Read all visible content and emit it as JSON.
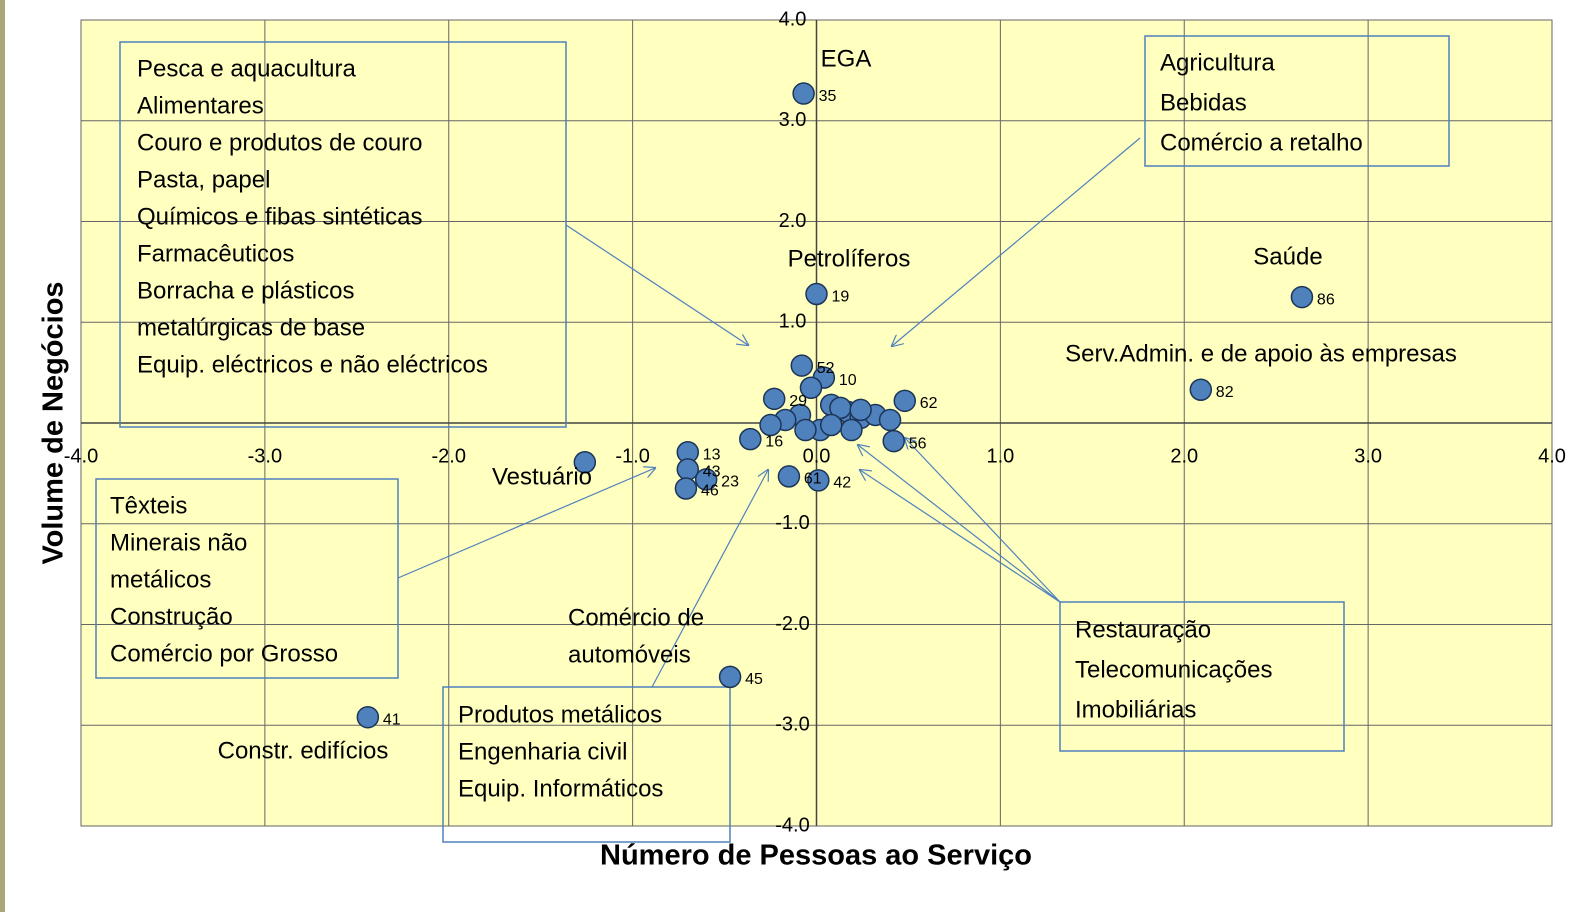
{
  "chart_data": {
    "type": "scatter",
    "x_label": "Número de Pessoas ao Serviço",
    "y_label": "Volume de Negócios",
    "xlim": [
      -4,
      4
    ],
    "ylim": [
      -4,
      4
    ],
    "xticks": [
      {
        "value": -4,
        "label": "-4.0"
      },
      {
        "value": -3,
        "label": "-3.0"
      },
      {
        "value": -2,
        "label": "-2.0"
      },
      {
        "value": -1,
        "label": "-1.0"
      },
      {
        "value": 0,
        "label": "0.0"
      },
      {
        "value": 1,
        "label": "1.0"
      },
      {
        "value": 2,
        "label": "2.0"
      },
      {
        "value": 3,
        "label": "3.0"
      },
      {
        "value": 4,
        "label": "4.0"
      }
    ],
    "yticks": [
      {
        "value": 4,
        "label": "4.0"
      },
      {
        "value": 3,
        "label": "3.0"
      },
      {
        "value": 2,
        "label": "2.0"
      },
      {
        "value": 1,
        "label": "1.0"
      },
      {
        "value": 0,
        "label": "0.0"
      },
      {
        "value": -1,
        "label": "-1.0"
      },
      {
        "value": -2,
        "label": "-2.0"
      },
      {
        "value": -3,
        "label": "-3.0"
      },
      {
        "value": -4,
        "label": "-4.0"
      }
    ],
    "grid": true,
    "color": "#4f81bd",
    "x": [
      -0.07,
      0.0,
      2.64,
      2.09,
      0.42,
      -0.47,
      -2.44,
      -1.26,
      -0.7,
      -0.7,
      -0.71,
      -0.6,
      -0.15,
      0.01,
      -0.36,
      -0.08,
      0.04,
      0.48,
      -0.23,
      -0.03,
      0.08,
      0.17,
      0.24,
      0.32,
      0.4,
      -0.09,
      -0.17,
      -0.25,
      0.02,
      0.19,
      0.13,
      0.24,
      -0.06,
      0.08
    ],
    "y": [
      3.27,
      1.28,
      1.25,
      0.33,
      -0.18,
      -2.52,
      -2.92,
      -0.39,
      -0.29,
      -0.46,
      -0.65,
      -0.56,
      -0.53,
      -0.57,
      -0.16,
      0.57,
      0.45,
      0.22,
      0.24,
      0.35,
      0.18,
      0.11,
      0.05,
      0.08,
      0.03,
      0.08,
      0.03,
      -0.02,
      -0.07,
      -0.07,
      0.15,
      0.13,
      -0.07,
      -0.02
    ],
    "point_labels": [
      "35",
      "19",
      "86",
      "82",
      "56",
      "45",
      "41",
      null,
      "13",
      "43",
      "46",
      "23",
      "61",
      "42",
      "16",
      "52",
      "10",
      "62",
      "29",
      null,
      null,
      null,
      null,
      null,
      null,
      null,
      null,
      null,
      null,
      null,
      null,
      null,
      null,
      null
    ],
    "annotations": [
      {
        "lines": [
          "EGA"
        ]
      },
      {
        "lines": [
          "Petrolíferos"
        ]
      },
      {
        "lines": [
          "Saúde"
        ]
      },
      {
        "lines": [
          "Serv.Admin. e de apoio às empresas"
        ]
      },
      {
        "lines": [
          "Vestuário"
        ]
      },
      {
        "lines": [
          "Comércio de",
          "automóveis"
        ]
      },
      {
        "lines": [
          "Constr. edifícios"
        ]
      }
    ],
    "boxes": [
      {
        "lines": [
          "Pesca e aquacultura",
          "Alimentares",
          "Couro e produtos de couro",
          "Pasta, papel",
          "Químicos e fibas sintéticas",
          "Farmacêuticos",
          "Borracha e plásticos",
          "metalúrgicas de base",
          "Equip. eléctricos e não eléctricos"
        ]
      },
      {
        "lines": [
          "Agricultura",
          "Bebidas",
          "Comércio a retalho"
        ]
      },
      {
        "lines": [
          "Têxteis",
          "Minerais não",
          "metálicos",
          "Construção",
          "Comércio por Grosso"
        ]
      },
      {
        "lines": [
          "Produtos metálicos",
          "Engenharia civil",
          "Equip. Informáticos"
        ]
      },
      {
        "lines": [
          "Restauração",
          "Telecomunicações",
          "Imobiliárias"
        ]
      }
    ]
  }
}
